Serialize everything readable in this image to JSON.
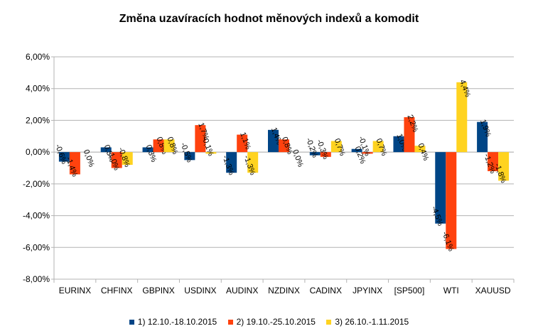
{
  "chart_data": {
    "type": "bar",
    "title": "Změna uzavíracích hodnot měnových indexů a komodit",
    "xlabel": "",
    "ylabel": "",
    "ylim": [
      -8,
      6
    ],
    "ytick_values": [
      -8,
      -6,
      -4,
      -2,
      0,
      2,
      4,
      6
    ],
    "ytick_labels": [
      "-8,00%",
      "-6,00%",
      "-4,00%",
      "-2,00%",
      "0,00%",
      "2,00%",
      "4,00%",
      "6,00%"
    ],
    "grid": true,
    "legend_position": "bottom",
    "categories": [
      "EURINX",
      "CHFINX",
      "GBPINX",
      "USDINX",
      "AUDINX",
      "NZDINX",
      "CADINX",
      "JPYINX",
      "[SP500]",
      "WTI",
      "XAUUSD"
    ],
    "series": [
      {
        "name": "1) 12.10.-18.10.2015",
        "color": "#004586",
        "values": [
          -0.6,
          0.3,
          0.3,
          -0.5,
          -1.3,
          1.4,
          -0.2,
          0.2,
          1.0,
          -4.5,
          1.9
        ],
        "labels": [
          "-0,6%",
          "0,3%",
          "0,3%",
          "-0,5%",
          "-1,3%",
          "1,4%",
          "-0,2%",
          "0,2%",
          "1,0%",
          "-4,5%",
          "1,9%"
        ]
      },
      {
        "name": "2) 19.10.-25.10.2015",
        "color": "#ff420e",
        "values": [
          -1.4,
          -1.0,
          0.8,
          1.7,
          1.1,
          0.8,
          -0.3,
          -0.1,
          2.2,
          -6.1,
          -1.2
        ],
        "labels": [
          "-1,4%",
          "-1,0%",
          "0,8%",
          "1,7%",
          "1,1%",
          "0,8%",
          "-0,3%",
          "-0,1%",
          "2,2%",
          "-6,1%",
          "-1,2%"
        ]
      },
      {
        "name": "3) 26.10.-1.11.2015",
        "color": "#ffd320",
        "values": [
          0.0,
          -0.8,
          0.8,
          -0.1,
          -1.3,
          0.0,
          0.7,
          0.7,
          0.4,
          4.4,
          -1.8
        ],
        "labels": [
          "0,0%",
          "-0,8%",
          "0,8%",
          "-0,1%",
          "-1,3%",
          "0,0%",
          "0,7%",
          "0,7%",
          "0,4%",
          "4,4%",
          "-1,8%"
        ]
      }
    ]
  }
}
